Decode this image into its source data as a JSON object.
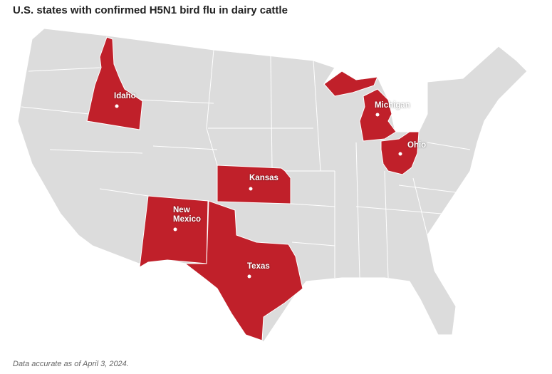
{
  "title": "U.S. states with confirmed H5N1 bird flu in dairy cattle",
  "states": [
    {
      "name": "Idaho"
    },
    {
      "name": "Michigan"
    },
    {
      "name": "Ohio"
    },
    {
      "name": "Kansas"
    },
    {
      "name": "New Mexico"
    },
    {
      "name": "Texas"
    }
  ],
  "note": "Data accurate as of April 3, 2024."
}
